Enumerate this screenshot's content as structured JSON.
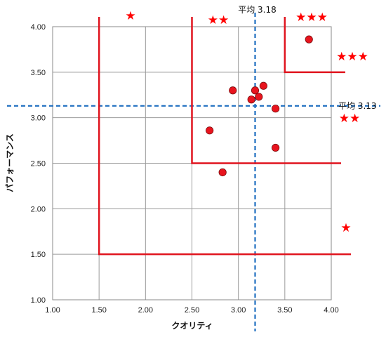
{
  "chart_data": {
    "type": "scatter",
    "xlabel": "クオリティ",
    "ylabel": "パフォーマンス",
    "xlim": [
      1.0,
      4.0
    ],
    "ylim": [
      1.0,
      4.0
    ],
    "x_ticks": [
      "1.00",
      "1.50",
      "2.00",
      "2.50",
      "3.00",
      "3.50",
      "4.00"
    ],
    "y_ticks": [
      "1.00",
      "1.50",
      "2.00",
      "2.50",
      "3.00",
      "3.50",
      "4.00"
    ],
    "grid": true,
    "point_color": "#e8141e",
    "points": [
      {
        "x": 3.76,
        "y": 3.86
      },
      {
        "x": 3.27,
        "y": 3.35
      },
      {
        "x": 2.94,
        "y": 3.3
      },
      {
        "x": 3.18,
        "y": 3.3
      },
      {
        "x": 3.22,
        "y": 3.23
      },
      {
        "x": 3.14,
        "y": 3.2
      },
      {
        "x": 3.4,
        "y": 3.1
      },
      {
        "x": 2.69,
        "y": 2.86
      },
      {
        "x": 3.4,
        "y": 2.67
      },
      {
        "x": 2.83,
        "y": 2.4
      }
    ],
    "averages": {
      "color": "#1f6fc0",
      "x": {
        "value": 3.18,
        "label": "平均 3.18"
      },
      "y": {
        "value": 3.13,
        "label": "平均 3.13"
      }
    },
    "tiers": {
      "color": "#e0141e",
      "thresholds": [
        {
          "x": 1.5,
          "y": 1.5,
          "rating": "★"
        },
        {
          "x": 2.5,
          "y": 2.5,
          "rating": "★★"
        },
        {
          "x": 3.5,
          "y": 3.5,
          "rating": "★★★"
        }
      ],
      "star_labels": [
        "★",
        "★★",
        "★★★",
        "★★★",
        "★★",
        "★"
      ]
    }
  }
}
